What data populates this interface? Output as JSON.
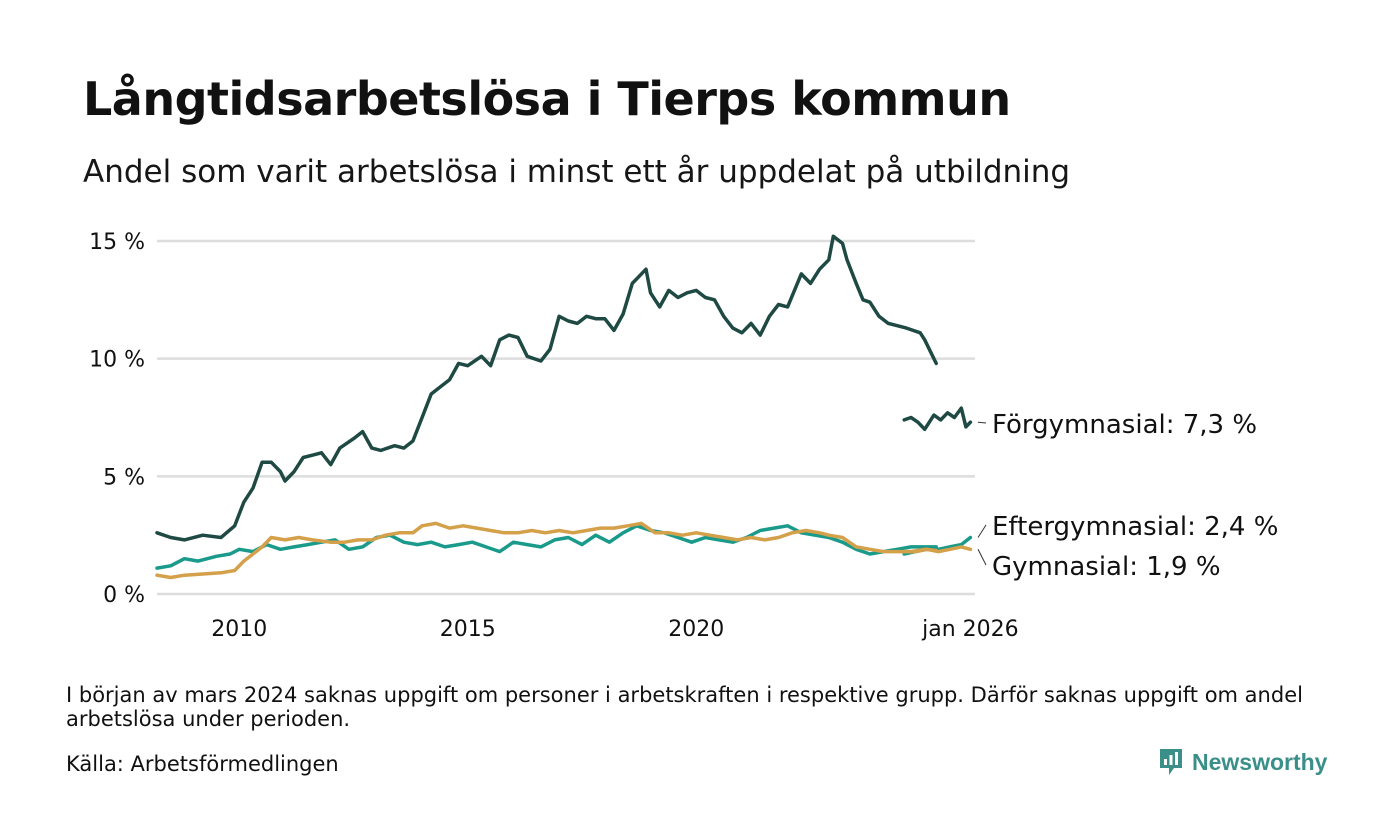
{
  "title": "Långtidsarbetslösa i Tierps kommun",
  "subtitle": "Andel som varit arbetslösa i minst ett år uppdelat på utbildning",
  "note": "I början av mars 2024 saknas uppgift om personer i arbetskraften i respektive grupp. Därför saknas uppgift om andel arbetslösa under perioden.",
  "source": "Källa: Arbetsförmedlingen",
  "brand": {
    "name": "Newsworthy",
    "icon": "newsworthy-logo-icon",
    "color": "#3a8f89"
  },
  "chart_data": {
    "type": "line",
    "title": "Långtidsarbetslösa i Tierps kommun",
    "xlabel": "",
    "ylabel": "",
    "xlim": [
      2008.2,
      2026.1
    ],
    "ylim": [
      0,
      15
    ],
    "yticks": [
      0,
      5,
      10,
      15
    ],
    "ytick_labels": [
      "0 %",
      "5 %",
      "10 %",
      "15 %"
    ],
    "xticks": [
      2010,
      2015,
      2020,
      2026.0
    ],
    "xtick_labels": [
      "2010",
      "2015",
      "2020",
      "jan 2026"
    ],
    "grid": true,
    "gap": [
      2023.75,
      2024.2
    ],
    "series": [
      {
        "name": "Förgymnasial",
        "label": "Förgymnasial: 7,3 %",
        "color": "#1f4a44",
        "points": [
          [
            2008.2,
            2.6
          ],
          [
            2008.5,
            2.4
          ],
          [
            2008.8,
            2.3
          ],
          [
            2009.2,
            2.5
          ],
          [
            2009.6,
            2.4
          ],
          [
            2009.9,
            2.9
          ],
          [
            2010.1,
            3.9
          ],
          [
            2010.3,
            4.5
          ],
          [
            2010.5,
            5.6
          ],
          [
            2010.7,
            5.6
          ],
          [
            2010.9,
            5.2
          ],
          [
            2011.0,
            4.8
          ],
          [
            2011.2,
            5.2
          ],
          [
            2011.4,
            5.8
          ],
          [
            2011.6,
            5.9
          ],
          [
            2011.8,
            6.0
          ],
          [
            2012.0,
            5.5
          ],
          [
            2012.2,
            6.2
          ],
          [
            2012.5,
            6.6
          ],
          [
            2012.7,
            6.9
          ],
          [
            2012.9,
            6.2
          ],
          [
            2013.1,
            6.1
          ],
          [
            2013.4,
            6.3
          ],
          [
            2013.6,
            6.2
          ],
          [
            2013.8,
            6.5
          ],
          [
            2014.0,
            7.5
          ],
          [
            2014.2,
            8.5
          ],
          [
            2014.4,
            8.8
          ],
          [
            2014.6,
            9.1
          ],
          [
            2014.8,
            9.8
          ],
          [
            2015.0,
            9.7
          ],
          [
            2015.3,
            10.1
          ],
          [
            2015.5,
            9.7
          ],
          [
            2015.7,
            10.8
          ],
          [
            2015.9,
            11.0
          ],
          [
            2016.1,
            10.9
          ],
          [
            2016.3,
            10.1
          ],
          [
            2016.6,
            9.9
          ],
          [
            2016.8,
            10.4
          ],
          [
            2017.0,
            11.8
          ],
          [
            2017.2,
            11.6
          ],
          [
            2017.4,
            11.5
          ],
          [
            2017.6,
            11.8
          ],
          [
            2017.8,
            11.7
          ],
          [
            2018.0,
            11.7
          ],
          [
            2018.2,
            11.2
          ],
          [
            2018.4,
            11.9
          ],
          [
            2018.6,
            13.2
          ],
          [
            2018.9,
            13.8
          ],
          [
            2019.0,
            12.8
          ],
          [
            2019.2,
            12.2
          ],
          [
            2019.4,
            12.9
          ],
          [
            2019.6,
            12.6
          ],
          [
            2019.8,
            12.8
          ],
          [
            2020.0,
            12.9
          ],
          [
            2020.2,
            12.6
          ],
          [
            2020.4,
            12.5
          ],
          [
            2020.6,
            11.8
          ],
          [
            2020.8,
            11.3
          ],
          [
            2021.0,
            11.1
          ],
          [
            2021.2,
            11.5
          ],
          [
            2021.4,
            11.0
          ],
          [
            2021.6,
            11.8
          ],
          [
            2021.8,
            12.3
          ],
          [
            2022.0,
            12.2
          ],
          [
            2022.3,
            13.6
          ],
          [
            2022.5,
            13.2
          ],
          [
            2022.7,
            13.8
          ],
          [
            2022.9,
            14.2
          ],
          [
            2023.0,
            15.2
          ],
          [
            2023.2,
            14.9
          ],
          [
            2023.3,
            14.2
          ],
          [
            2023.5,
            13.2
          ],
          [
            2023.65,
            12.5
          ],
          [
            2023.8,
            12.4
          ],
          [
            2024.0,
            11.8
          ],
          [
            2024.2,
            11.5
          ],
          [
            2024.4,
            11.4
          ],
          [
            2024.6,
            11.3
          ],
          [
            2024.9,
            11.1
          ],
          [
            2025.0,
            10.8
          ],
          [
            2025.25,
            9.8
          ]
        ]
      },
      {
        "name": "Förgymnasial (efter uppehåll)",
        "label": "",
        "color": "#1f4a44",
        "points": [
          [
            2024.55,
            7.4
          ],
          [
            2024.7,
            7.5
          ],
          [
            2024.85,
            7.3
          ],
          [
            2025.0,
            7.0
          ],
          [
            2025.2,
            7.6
          ],
          [
            2025.35,
            7.4
          ],
          [
            2025.5,
            7.7
          ],
          [
            2025.65,
            7.5
          ],
          [
            2025.8,
            7.9
          ],
          [
            2025.9,
            7.1
          ],
          [
            2026.0,
            7.3
          ]
        ]
      },
      {
        "name": "Eftergymnasial",
        "label": "Eftergymnasial: 2,4 %",
        "color": "#1a9a8a",
        "points": [
          [
            2008.2,
            1.1
          ],
          [
            2008.5,
            1.2
          ],
          [
            2008.8,
            1.5
          ],
          [
            2009.1,
            1.4
          ],
          [
            2009.5,
            1.6
          ],
          [
            2009.8,
            1.7
          ],
          [
            2010.0,
            1.9
          ],
          [
            2010.3,
            1.8
          ],
          [
            2010.6,
            2.1
          ],
          [
            2010.9,
            1.9
          ],
          [
            2011.2,
            2.0
          ],
          [
            2011.5,
            2.1
          ],
          [
            2011.8,
            2.2
          ],
          [
            2012.1,
            2.3
          ],
          [
            2012.4,
            1.9
          ],
          [
            2012.7,
            2.0
          ],
          [
            2013.0,
            2.4
          ],
          [
            2013.3,
            2.5
          ],
          [
            2013.6,
            2.2
          ],
          [
            2013.9,
            2.1
          ],
          [
            2014.2,
            2.2
          ],
          [
            2014.5,
            2.0
          ],
          [
            2014.8,
            2.1
          ],
          [
            2015.1,
            2.2
          ],
          [
            2015.4,
            2.0
          ],
          [
            2015.7,
            1.8
          ],
          [
            2016.0,
            2.2
          ],
          [
            2016.3,
            2.1
          ],
          [
            2016.6,
            2.0
          ],
          [
            2016.9,
            2.3
          ],
          [
            2017.2,
            2.4
          ],
          [
            2017.5,
            2.1
          ],
          [
            2017.8,
            2.5
          ],
          [
            2018.1,
            2.2
          ],
          [
            2018.4,
            2.6
          ],
          [
            2018.7,
            2.9
          ],
          [
            2019.0,
            2.7
          ],
          [
            2019.3,
            2.6
          ],
          [
            2019.6,
            2.4
          ],
          [
            2019.9,
            2.2
          ],
          [
            2020.2,
            2.4
          ],
          [
            2020.5,
            2.3
          ],
          [
            2020.8,
            2.2
          ],
          [
            2021.1,
            2.4
          ],
          [
            2021.4,
            2.7
          ],
          [
            2021.7,
            2.8
          ],
          [
            2022.0,
            2.9
          ],
          [
            2022.3,
            2.6
          ],
          [
            2022.6,
            2.5
          ],
          [
            2022.9,
            2.4
          ],
          [
            2023.2,
            2.2
          ],
          [
            2023.5,
            1.9
          ],
          [
            2023.8,
            1.7
          ],
          [
            2024.1,
            1.8
          ],
          [
            2024.4,
            1.9
          ],
          [
            2024.7,
            2.0
          ],
          [
            2025.0,
            2.0
          ],
          [
            2025.25,
            2.0
          ]
        ]
      },
      {
        "name": "Eftergymnasial (efter uppehåll)",
        "label": "",
        "color": "#1a9a8a",
        "points": [
          [
            2024.55,
            1.7
          ],
          [
            2024.8,
            1.8
          ],
          [
            2025.05,
            1.9
          ],
          [
            2025.3,
            1.9
          ],
          [
            2025.55,
            2.0
          ],
          [
            2025.8,
            2.1
          ],
          [
            2026.0,
            2.4
          ]
        ]
      },
      {
        "name": "Gymnasial",
        "label": "Gymnasial: 1,9 %",
        "color": "#d4a04a",
        "points": [
          [
            2008.2,
            0.8
          ],
          [
            2008.5,
            0.7
          ],
          [
            2008.8,
            0.8
          ],
          [
            2009.2,
            0.85
          ],
          [
            2009.6,
            0.9
          ],
          [
            2009.9,
            1.0
          ],
          [
            2010.1,
            1.4
          ],
          [
            2010.3,
            1.7
          ],
          [
            2010.5,
            2.0
          ],
          [
            2010.7,
            2.4
          ],
          [
            2011.0,
            2.3
          ],
          [
            2011.3,
            2.4
          ],
          [
            2011.6,
            2.3
          ],
          [
            2012.0,
            2.2
          ],
          [
            2012.3,
            2.2
          ],
          [
            2012.6,
            2.3
          ],
          [
            2012.9,
            2.3
          ],
          [
            2013.2,
            2.5
          ],
          [
            2013.5,
            2.6
          ],
          [
            2013.8,
            2.6
          ],
          [
            2014.0,
            2.9
          ],
          [
            2014.3,
            3.0
          ],
          [
            2014.6,
            2.8
          ],
          [
            2014.9,
            2.9
          ],
          [
            2015.2,
            2.8
          ],
          [
            2015.5,
            2.7
          ],
          [
            2015.8,
            2.6
          ],
          [
            2016.1,
            2.6
          ],
          [
            2016.4,
            2.7
          ],
          [
            2016.7,
            2.6
          ],
          [
            2017.0,
            2.7
          ],
          [
            2017.3,
            2.6
          ],
          [
            2017.6,
            2.7
          ],
          [
            2017.9,
            2.8
          ],
          [
            2018.2,
            2.8
          ],
          [
            2018.5,
            2.9
          ],
          [
            2018.8,
            3.0
          ],
          [
            2019.1,
            2.6
          ],
          [
            2019.4,
            2.6
          ],
          [
            2019.7,
            2.5
          ],
          [
            2020.0,
            2.6
          ],
          [
            2020.3,
            2.5
          ],
          [
            2020.6,
            2.4
          ],
          [
            2020.9,
            2.3
          ],
          [
            2021.2,
            2.4
          ],
          [
            2021.5,
            2.3
          ],
          [
            2021.8,
            2.4
          ],
          [
            2022.1,
            2.6
          ],
          [
            2022.4,
            2.7
          ],
          [
            2022.7,
            2.6
          ],
          [
            2022.9,
            2.5
          ],
          [
            2023.2,
            2.4
          ],
          [
            2023.5,
            2.0
          ],
          [
            2023.8,
            1.9
          ],
          [
            2024.1,
            1.8
          ],
          [
            2024.4,
            1.8
          ],
          [
            2024.7,
            1.8
          ],
          [
            2025.0,
            1.9
          ],
          [
            2025.25,
            1.85
          ]
        ]
      },
      {
        "name": "Gymnasial (efter uppehåll)",
        "label": "",
        "color": "#d4a04a",
        "points": [
          [
            2024.55,
            1.8
          ],
          [
            2024.8,
            1.8
          ],
          [
            2025.05,
            1.9
          ],
          [
            2025.3,
            1.8
          ],
          [
            2025.55,
            1.9
          ],
          [
            2025.8,
            2.0
          ],
          [
            2026.0,
            1.9
          ]
        ]
      }
    ]
  }
}
